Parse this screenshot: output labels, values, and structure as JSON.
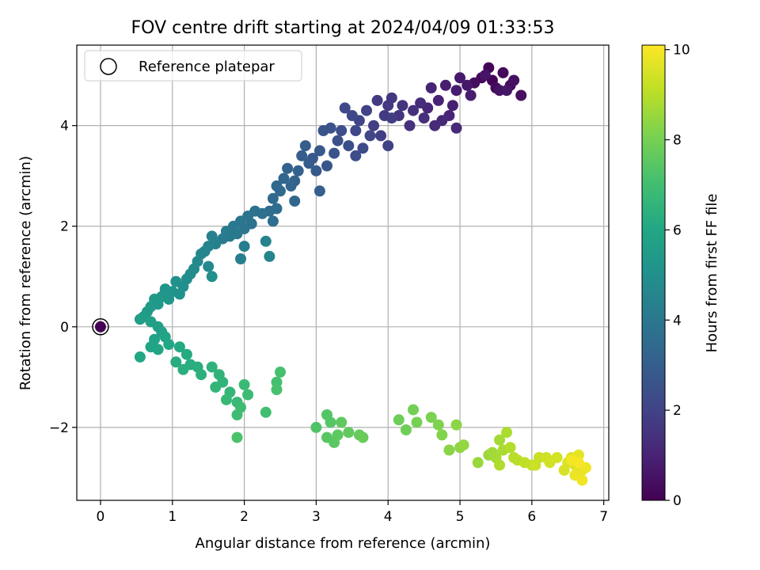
{
  "chart_data": {
    "type": "scatter",
    "title": "FOV centre drift starting at 2024/04/09 01:33:53",
    "xlabel": "Angular distance from reference (arcmin)",
    "ylabel": "Rotation from reference (arcmin)",
    "xlim": [
      -0.33,
      7.07
    ],
    "ylim": [
      -3.45,
      5.6
    ],
    "xticks": [
      0,
      1,
      2,
      3,
      4,
      5,
      6,
      7
    ],
    "xtick_labels": [
      "0",
      "1",
      "2",
      "3",
      "4",
      "5",
      "6",
      "7"
    ],
    "yticks": [
      -2,
      0,
      2,
      4
    ],
    "ytick_labels": [
      "−2",
      "0",
      "2",
      "4"
    ],
    "grid": true,
    "legend": {
      "position": "top-left",
      "entries": [
        "Reference platepar"
      ]
    },
    "colorbar": {
      "label": "Hours from first FF file",
      "colormap": "viridis",
      "range": [
        0,
        10.1
      ],
      "ticks": [
        0,
        2,
        4,
        6,
        8,
        10
      ],
      "tick_labels": [
        "0",
        "2",
        "4",
        "6",
        "8",
        "10"
      ]
    },
    "reference_point": {
      "x": 0,
      "y": 0,
      "t": 0
    },
    "series": [
      {
        "points": [
          [
            5.45,
            4.9,
            0.05
          ],
          [
            5.4,
            5.15,
            0.1
          ],
          [
            5.3,
            4.95,
            0.15
          ],
          [
            5.6,
            5.05,
            0.2
          ],
          [
            5.5,
            4.75,
            0.25
          ],
          [
            5.7,
            4.8,
            0.3
          ],
          [
            5.2,
            4.85,
            0.35
          ],
          [
            5.85,
            4.6,
            0.4
          ],
          [
            5.75,
            4.9,
            0.45
          ],
          [
            5.55,
            4.7,
            0.5
          ],
          [
            5.35,
            5.0,
            0.55
          ],
          [
            5.65,
            4.7,
            0.6
          ],
          [
            5.1,
            4.8,
            0.65
          ],
          [
            5.0,
            4.95,
            0.7
          ],
          [
            4.95,
            4.7,
            0.75
          ],
          [
            5.15,
            4.6,
            0.8
          ],
          [
            4.8,
            4.8,
            0.85
          ],
          [
            4.9,
            4.4,
            0.9
          ],
          [
            4.7,
            4.5,
            0.95
          ],
          [
            4.6,
            4.75,
            1.0
          ],
          [
            4.85,
            4.2,
            1.05
          ],
          [
            4.55,
            4.35,
            1.1
          ],
          [
            4.75,
            4.1,
            1.15
          ],
          [
            4.95,
            3.95,
            1.2
          ],
          [
            4.65,
            4.0,
            1.25
          ],
          [
            4.45,
            4.45,
            1.3
          ],
          [
            4.5,
            4.15,
            1.35
          ],
          [
            4.35,
            4.3,
            1.4
          ],
          [
            4.3,
            4.0,
            1.45
          ],
          [
            4.2,
            4.4,
            1.5
          ],
          [
            4.15,
            4.2,
            1.55
          ],
          [
            4.05,
            4.55,
            1.6
          ],
          [
            4.0,
            4.4,
            1.65
          ],
          [
            3.95,
            4.2,
            1.7
          ],
          [
            3.85,
            4.5,
            1.75
          ],
          [
            4.05,
            4.15,
            1.8
          ],
          [
            3.8,
            4.0,
            1.85
          ],
          [
            3.9,
            3.8,
            1.9
          ],
          [
            4.0,
            3.6,
            1.95
          ],
          [
            3.7,
            4.3,
            2.0
          ],
          [
            3.6,
            4.1,
            2.05
          ],
          [
            3.75,
            3.8,
            2.1
          ],
          [
            3.55,
            3.9,
            2.15
          ],
          [
            3.5,
            4.2,
            2.2
          ],
          [
            3.4,
            4.35,
            2.25
          ],
          [
            3.65,
            3.55,
            2.3
          ],
          [
            3.55,
            3.4,
            2.35
          ],
          [
            3.45,
            3.6,
            2.4
          ],
          [
            3.35,
            3.9,
            2.45
          ],
          [
            3.3,
            3.7,
            2.5
          ],
          [
            3.2,
            3.95,
            2.55
          ],
          [
            3.1,
            3.9,
            2.6
          ],
          [
            3.25,
            3.45,
            2.65
          ],
          [
            3.15,
            3.2,
            2.7
          ],
          [
            3.05,
            3.5,
            2.75
          ],
          [
            2.95,
            3.35,
            2.8
          ],
          [
            3.0,
            3.1,
            2.85
          ],
          [
            2.9,
            3.25,
            2.9
          ],
          [
            2.8,
            3.4,
            2.95
          ],
          [
            2.85,
            3.6,
            3.0
          ],
          [
            3.05,
            2.7,
            3.05
          ],
          [
            2.75,
            3.1,
            3.1
          ],
          [
            2.7,
            2.9,
            3.15
          ],
          [
            2.6,
            3.15,
            3.2
          ],
          [
            2.65,
            2.8,
            3.25
          ],
          [
            2.55,
            2.95,
            3.3
          ],
          [
            2.7,
            2.5,
            3.35
          ],
          [
            2.5,
            2.7,
            3.4
          ],
          [
            2.45,
            2.8,
            3.45
          ],
          [
            2.4,
            2.55,
            3.5
          ],
          [
            2.35,
            2.3,
            3.55
          ],
          [
            2.45,
            2.35,
            3.6
          ],
          [
            2.4,
            2.1,
            3.65
          ],
          [
            2.25,
            2.25,
            3.7
          ],
          [
            2.15,
            2.3,
            3.75
          ],
          [
            2.1,
            2.05,
            3.8
          ],
          [
            2.05,
            2.2,
            3.85
          ],
          [
            2.0,
            1.95,
            3.9
          ],
          [
            1.95,
            2.1,
            3.95
          ],
          [
            1.9,
            1.85,
            4.0
          ],
          [
            1.85,
            2.0,
            4.05
          ],
          [
            1.8,
            1.8,
            4.1
          ],
          [
            1.75,
            1.9,
            4.15
          ],
          [
            1.7,
            1.75,
            4.2
          ],
          [
            2.0,
            1.6,
            4.25
          ],
          [
            1.95,
            1.35,
            4.3
          ],
          [
            1.6,
            1.65,
            4.35
          ],
          [
            1.55,
            1.8,
            4.4
          ],
          [
            1.5,
            1.6,
            4.45
          ],
          [
            2.3,
            1.7,
            4.5
          ],
          [
            2.35,
            1.4,
            4.55
          ],
          [
            1.45,
            1.5,
            4.6
          ],
          [
            1.4,
            1.45,
            4.65
          ],
          [
            1.35,
            1.3,
            4.7
          ],
          [
            1.5,
            1.2,
            4.75
          ],
          [
            1.3,
            1.15,
            4.8
          ],
          [
            1.25,
            1.05,
            4.85
          ],
          [
            1.2,
            0.95,
            4.9
          ],
          [
            1.55,
            1.0,
            4.95
          ],
          [
            1.15,
            0.8,
            5.0
          ],
          [
            1.05,
            0.9,
            5.05
          ],
          [
            1.1,
            0.65,
            5.1
          ],
          [
            1.0,
            0.7,
            5.15
          ],
          [
            0.9,
            0.75,
            5.2
          ],
          [
            0.95,
            0.55,
            5.25
          ],
          [
            0.85,
            0.6,
            5.3
          ],
          [
            0.8,
            0.45,
            5.35
          ],
          [
            0.75,
            0.55,
            5.4
          ],
          [
            0.7,
            0.4,
            5.45
          ],
          [
            0.65,
            0.3,
            5.5
          ],
          [
            0.6,
            0.2,
            5.55
          ],
          [
            0.55,
            0.15,
            5.6
          ],
          [
            0.7,
            0.1,
            5.65
          ],
          [
            0.8,
            0.0,
            5.7
          ],
          [
            0.85,
            -0.1,
            5.75
          ],
          [
            0.75,
            -0.25,
            5.8
          ],
          [
            0.9,
            -0.2,
            5.85
          ],
          [
            0.8,
            -0.45,
            5.9
          ],
          [
            0.7,
            -0.4,
            5.95
          ],
          [
            0.55,
            -0.6,
            6.0
          ],
          [
            0.95,
            -0.35,
            6.05
          ],
          [
            1.1,
            -0.4,
            6.1
          ],
          [
            1.2,
            -0.55,
            6.15
          ],
          [
            1.05,
            -0.7,
            6.2
          ],
          [
            1.25,
            -0.75,
            6.25
          ],
          [
            1.35,
            -0.8,
            6.3
          ],
          [
            1.15,
            -0.85,
            6.35
          ],
          [
            1.4,
            -0.95,
            6.4
          ],
          [
            1.55,
            -0.8,
            6.45
          ],
          [
            1.65,
            -0.95,
            6.5
          ],
          [
            1.7,
            -1.1,
            6.55
          ],
          [
            1.6,
            -1.2,
            6.6
          ],
          [
            1.8,
            -1.3,
            6.65
          ],
          [
            1.75,
            -1.45,
            6.7
          ],
          [
            1.9,
            -1.5,
            6.75
          ],
          [
            2.0,
            -1.15,
            6.8
          ],
          [
            2.05,
            -1.35,
            6.85
          ],
          [
            1.95,
            -1.6,
            6.9
          ],
          [
            1.9,
            -1.75,
            6.95
          ],
          [
            2.3,
            -1.7,
            7.0
          ],
          [
            2.45,
            -1.1,
            7.05
          ],
          [
            2.5,
            -0.9,
            7.1
          ],
          [
            2.45,
            -1.25,
            7.15
          ],
          [
            1.9,
            -2.2,
            7.2
          ],
          [
            3.0,
            -2.0,
            7.3
          ],
          [
            3.15,
            -1.75,
            7.35
          ],
          [
            3.2,
            -1.9,
            7.4
          ],
          [
            3.15,
            -2.2,
            7.45
          ],
          [
            3.25,
            -2.3,
            7.5
          ],
          [
            3.3,
            -2.15,
            7.55
          ],
          [
            3.35,
            -1.9,
            7.6
          ],
          [
            3.45,
            -2.1,
            7.65
          ],
          [
            3.6,
            -2.15,
            7.7
          ],
          [
            3.65,
            -2.2,
            7.75
          ],
          [
            4.15,
            -1.85,
            7.85
          ],
          [
            4.25,
            -2.05,
            7.9
          ],
          [
            4.35,
            -1.65,
            7.95
          ],
          [
            4.4,
            -1.9,
            8.0
          ],
          [
            4.6,
            -1.8,
            8.1
          ],
          [
            4.7,
            -1.95,
            8.15
          ],
          [
            4.75,
            -2.15,
            8.2
          ],
          [
            4.85,
            -2.45,
            8.3
          ],
          [
            4.95,
            -1.95,
            8.35
          ],
          [
            5.0,
            -2.4,
            8.4
          ],
          [
            5.05,
            -2.35,
            8.45
          ],
          [
            5.25,
            -2.7,
            8.55
          ],
          [
            5.4,
            -2.55,
            8.6
          ],
          [
            5.45,
            -2.5,
            8.65
          ],
          [
            5.55,
            -2.25,
            8.7
          ],
          [
            5.5,
            -2.6,
            8.75
          ],
          [
            5.6,
            -2.45,
            8.8
          ],
          [
            5.65,
            -2.1,
            8.85
          ],
          [
            5.55,
            -2.75,
            8.9
          ],
          [
            5.7,
            -2.4,
            8.95
          ],
          [
            5.75,
            -2.6,
            9.0
          ],
          [
            5.8,
            -2.65,
            9.05
          ],
          [
            5.9,
            -2.7,
            9.1
          ],
          [
            6.0,
            -2.75,
            9.2
          ],
          [
            6.1,
            -2.6,
            9.25
          ],
          [
            6.05,
            -2.75,
            9.3
          ],
          [
            6.2,
            -2.6,
            9.35
          ],
          [
            6.25,
            -2.7,
            9.4
          ],
          [
            6.35,
            -2.6,
            9.45
          ],
          [
            6.45,
            -2.85,
            9.5
          ],
          [
            6.5,
            -2.7,
            9.55
          ],
          [
            6.55,
            -2.6,
            9.6
          ],
          [
            6.6,
            -2.75,
            9.65
          ],
          [
            6.65,
            -2.55,
            9.7
          ],
          [
            6.7,
            -2.85,
            9.75
          ],
          [
            6.6,
            -2.95,
            9.8
          ],
          [
            6.75,
            -2.8,
            9.85
          ],
          [
            6.7,
            -3.05,
            9.9
          ],
          [
            6.55,
            -2.65,
            9.95
          ],
          [
            6.65,
            -2.7,
            10.0
          ]
        ]
      }
    ]
  }
}
